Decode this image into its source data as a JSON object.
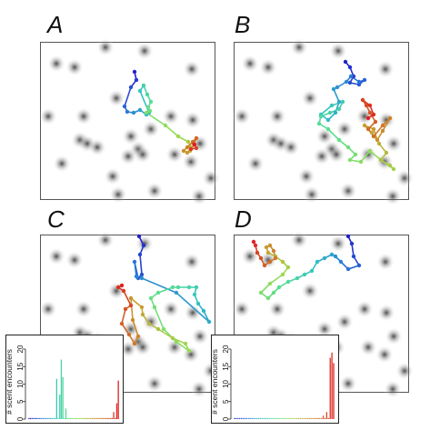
{
  "panels": [
    {
      "label": "A"
    },
    {
      "label": "B"
    },
    {
      "label": "C"
    },
    {
      "label": "D"
    }
  ],
  "trajectory_colors": [
    "#2222cc",
    "#2a7fd8",
    "#34c3c0",
    "#59e08f",
    "#9bdc52",
    "#c8a030",
    "#d06a28",
    "#e02020"
  ],
  "histograms": [
    {
      "panel": "C",
      "ylabel": "# scent encounters",
      "y_ticks": [
        "0",
        "5",
        "10",
        "15",
        "20"
      ],
      "y_max": 20,
      "values": [
        0.3,
        0.3,
        0.3,
        0.3,
        0.3,
        0.3,
        0.3,
        0.3,
        0.3,
        0.3,
        0.3,
        0.3,
        0.3,
        0.3,
        0.3,
        0.3,
        0.3,
        0.3,
        11.5,
        0.3,
        7,
        17,
        12,
        0.3,
        3,
        0.3,
        0.3,
        0.3,
        0.3,
        0.3,
        0.3,
        0.3,
        0.3,
        0.3,
        0.3,
        0.3,
        0.3,
        0.3,
        0.3,
        0.3,
        0.3,
        0.3,
        0.3,
        0.3,
        0.3,
        0.3,
        0.3,
        0.3,
        0.3,
        0.3,
        0.3,
        0.3,
        0.3,
        0.3,
        0.3,
        2,
        0.3,
        4.5,
        11
      ]
    },
    {
      "panel": "D",
      "ylabel": "# scent encounters",
      "y_ticks": [
        "0",
        "5",
        "10",
        "15",
        "20"
      ],
      "y_max": 20,
      "values": [
        0.3,
        0.3,
        0.3,
        0.3,
        0.3,
        0.3,
        0.3,
        0.3,
        0.3,
        0.3,
        0.3,
        0.3,
        0.3,
        0.3,
        0.3,
        0.3,
        0.3,
        0.3,
        0.3,
        0.3,
        0.3,
        0.3,
        0.3,
        0.3,
        0.3,
        0.3,
        0.3,
        0.3,
        0.3,
        0.3,
        0.3,
        0.3,
        0.3,
        0.3,
        0.3,
        0.3,
        0.3,
        0.3,
        0.3,
        0.3,
        0.3,
        0.3,
        0.3,
        0.3,
        0.3,
        0.3,
        0.3,
        0.3,
        0.3,
        0.3,
        0.3,
        1,
        0.3,
        2,
        0.3,
        17.5,
        19,
        16
      ]
    }
  ]
}
